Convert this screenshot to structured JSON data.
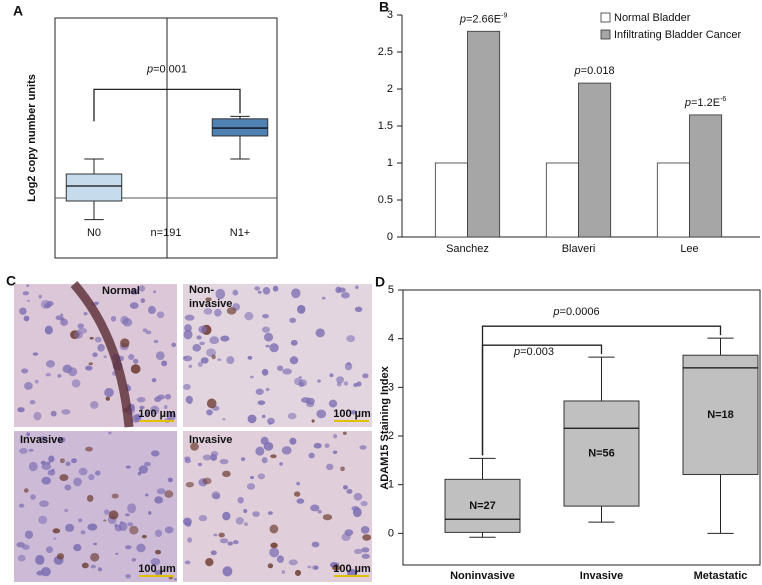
{
  "chart_data": [
    {
      "type": "box",
      "panel": "A",
      "y_label": "Log2 copy number units",
      "categories": [
        "N0",
        "N1+"
      ],
      "annotation": "n=191",
      "ylim": [
        -0.5,
        1.5
      ],
      "reference_line": 0,
      "boxes": [
        {
          "whisker_low": -0.18,
          "q1": -0.025,
          "median": 0.1,
          "q3": 0.2,
          "whisker_high": 0.325,
          "color": "#c6dbec"
        },
        {
          "whisker_low": 0.325,
          "q1": 0.517,
          "median": 0.583,
          "q3": 0.66,
          "whisker_high": 0.68,
          "color": "#4f81b3"
        }
      ],
      "brackets": [
        {
          "from": 0,
          "to": 1,
          "italic": "p",
          "text": "=0.001"
        }
      ]
    },
    {
      "type": "bar",
      "panel": "B",
      "categories": [
        "Sanchez",
        "Blaveri",
        "Lee"
      ],
      "series": [
        {
          "name": "Normal Bladder",
          "color": "#ffffff",
          "values": [
            1,
            1,
            1
          ]
        },
        {
          "name": "Infiltrating Bladder Cancer",
          "color": "#a6a6a6",
          "values": [
            2.78,
            2.08,
            1.65
          ]
        }
      ],
      "annotations": [
        {
          "italic": "p",
          "text": "=2.66E",
          "sup": "-9"
        },
        {
          "italic": "p",
          "text": "=0.018"
        },
        {
          "italic": "p",
          "text": "=1.2E",
          "sup": "-6"
        }
      ],
      "ylim": [
        0,
        3
      ],
      "yticks": [
        0,
        0.5,
        1,
        1.5,
        2,
        2.5,
        3
      ],
      "legend": "top-right"
    },
    {
      "type": "box",
      "panel": "D",
      "y_label": "ADAM15 Staining Index",
      "categories": [
        "Noninvasive",
        "Invasive",
        "Metastatic"
      ],
      "ylim": [
        -0.65,
        5
      ],
      "yticks": [
        0,
        1,
        2,
        3,
        4,
        5
      ],
      "boxes": [
        {
          "whisker_low": -0.08,
          "q1": 0.02,
          "median": 0.29,
          "q3": 1.11,
          "whisker_high": 1.54,
          "color": "#c0c0c0",
          "label": "N=27"
        },
        {
          "whisker_low": 0.23,
          "q1": 0.56,
          "median": 2.16,
          "q3": 2.72,
          "whisker_high": 3.62,
          "color": "#c0c0c0",
          "label": "N=56"
        },
        {
          "whisker_low": 0,
          "q1": 1.21,
          "median": 3.4,
          "q3": 3.66,
          "whisker_high": 4.01,
          "color": "#c0c0c0",
          "label": "N=18"
        }
      ],
      "brackets": [
        {
          "from": 0,
          "to": 1,
          "italic": "p",
          "text": "=0.003"
        },
        {
          "from": 0,
          "to": 2,
          "italic": "p",
          "text": "=0.0006"
        }
      ]
    }
  ],
  "figure_c": {
    "panel": "C",
    "images": [
      {
        "label_lines": [
          "Normal"
        ],
        "scale_bar": "100 µm"
      },
      {
        "label_lines": [
          "Non-",
          "invasive"
        ],
        "scale_bar": "100 µm"
      },
      {
        "label_lines": [
          "Invasive"
        ],
        "scale_bar": "100 µm"
      },
      {
        "label_lines": [
          "Invasive"
        ],
        "scale_bar": "100 µm"
      }
    ]
  }
}
